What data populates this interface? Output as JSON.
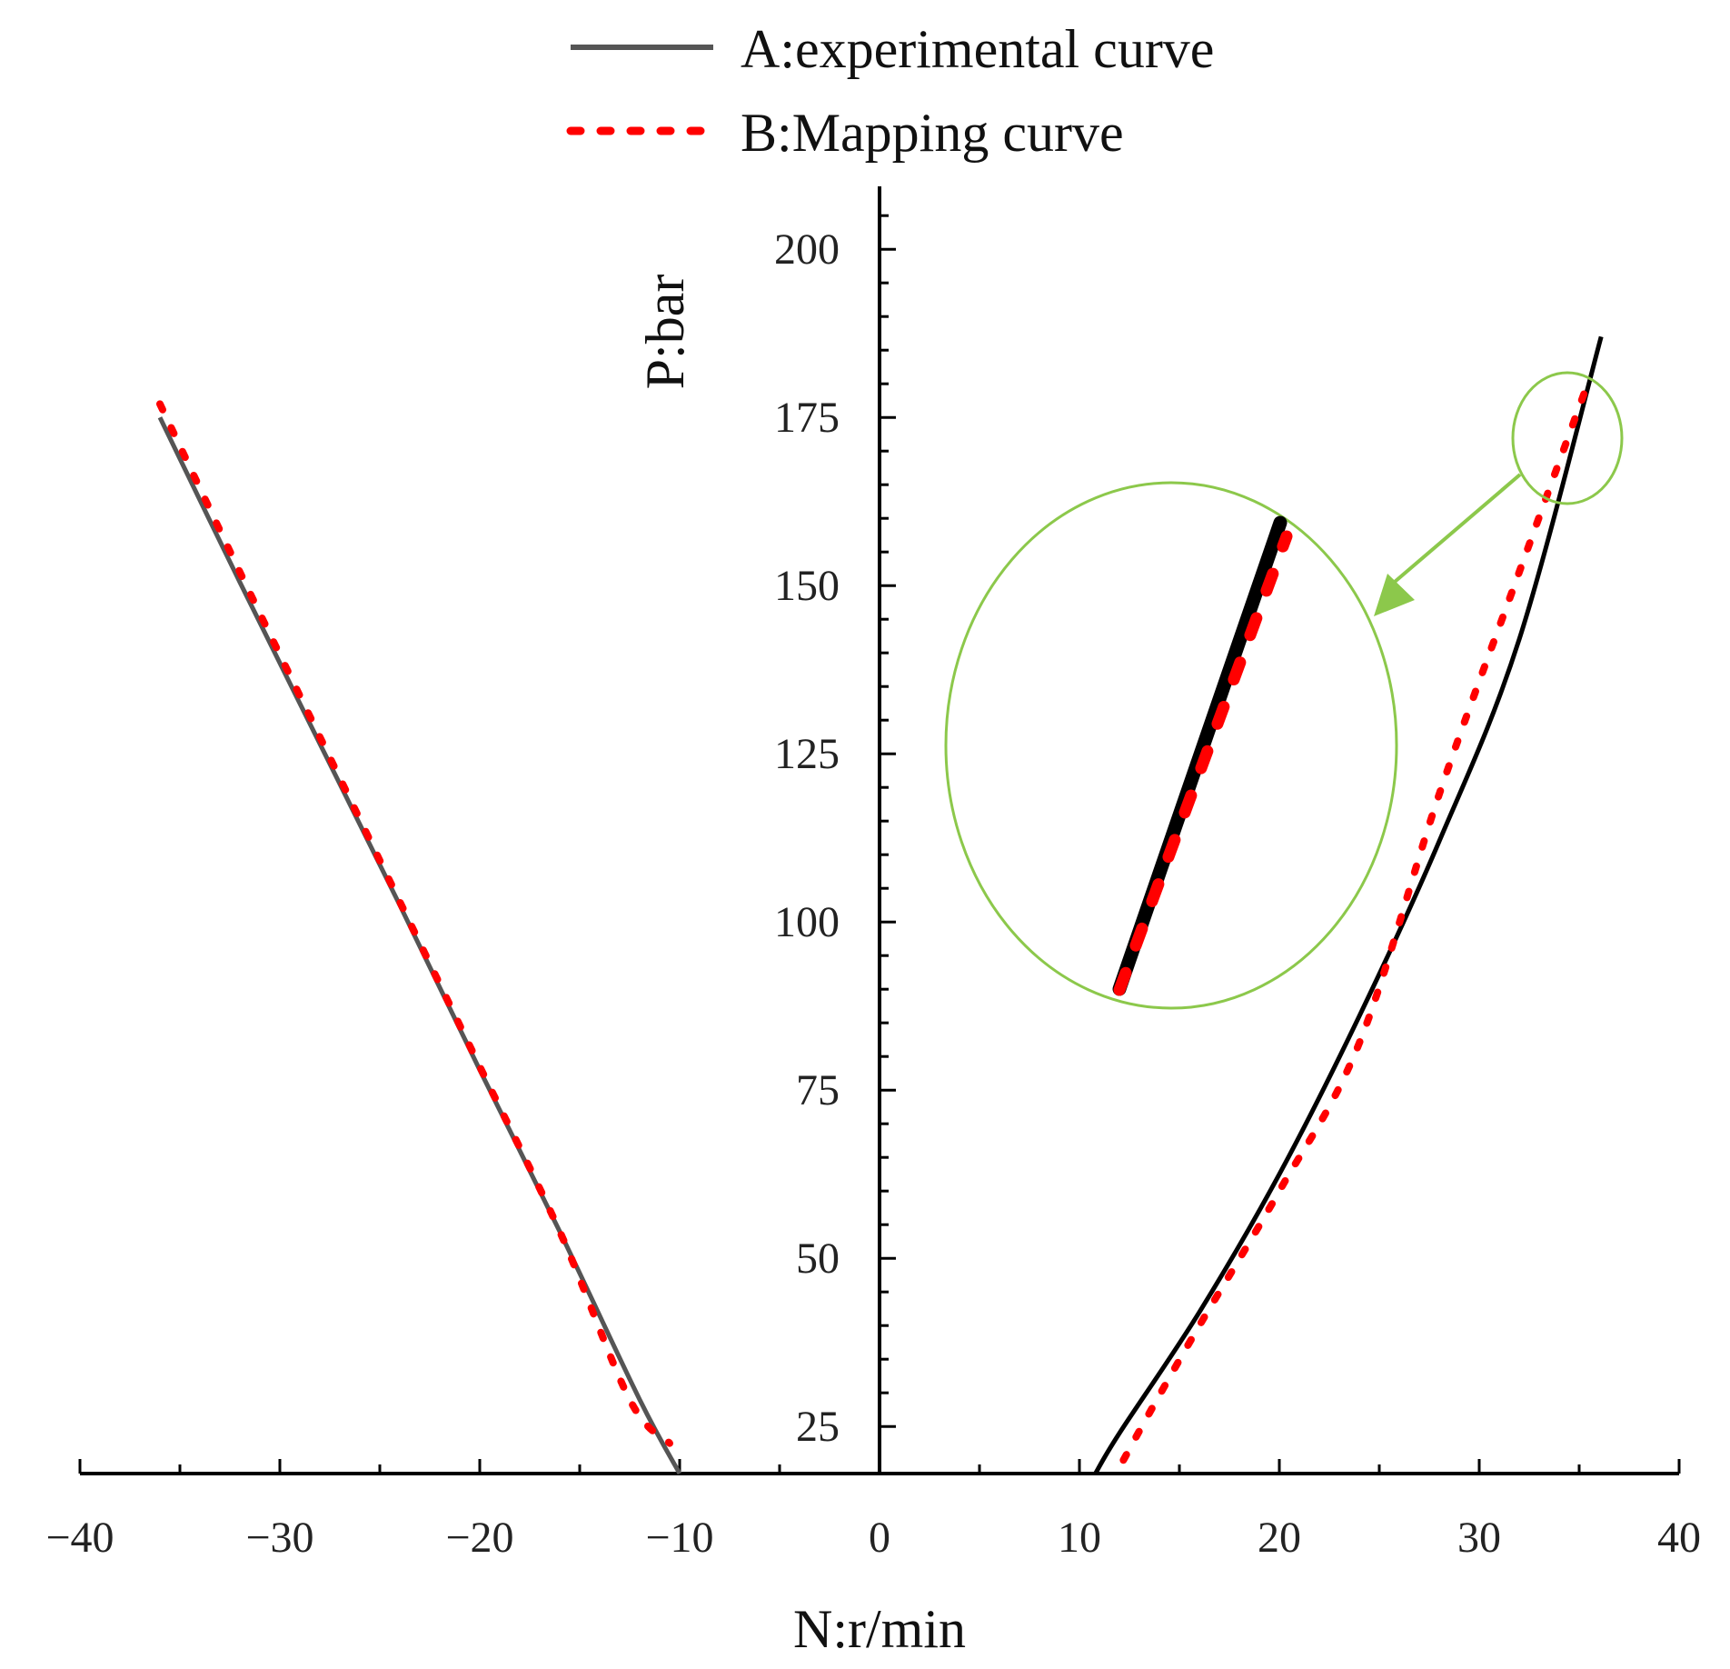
{
  "chart_data": {
    "type": "line",
    "title": "",
    "xlabel": "N:r/min",
    "ylabel": "P:bar",
    "xlim": [
      -40,
      40
    ],
    "ylim": [
      18,
      210
    ],
    "x_ticks": [
      -40,
      -30,
      -20,
      -10,
      0,
      10,
      20,
      30,
      40
    ],
    "x_tick_labels": [
      "−40",
      "−30",
      "−20",
      "−10",
      "0",
      "10",
      "20",
      "30",
      "40"
    ],
    "y_ticks": [
      25,
      50,
      75,
      100,
      125,
      150,
      175,
      200
    ],
    "y_tick_labels": [
      "25",
      "50",
      "75",
      "100",
      "125",
      "150",
      "175",
      "200"
    ],
    "grid": false,
    "legend_position": "top-center",
    "series": [
      {
        "name": "A:experimental curve",
        "style": "solid",
        "color": "#555555",
        "segments": [
          {
            "x": [
              -36,
              -32,
              -28,
              -24,
              -20,
              -16,
              -12,
              -10
            ],
            "y": [
              175,
              150.5,
              126.5,
              102.5,
              78,
              54,
              29,
              18
            ]
          },
          {
            "x": [
              10.8,
              12,
              16,
              20,
              24,
              28,
              32,
              36.1
            ],
            "y": [
              18,
              24,
              42,
              62.5,
              86,
              112,
              142,
              187
            ]
          }
        ]
      },
      {
        "name": "B:Mapping curve",
        "style": "dotted",
        "color": "#ff0000",
        "segments": [
          {
            "x": [
              -36,
              -32,
              -28,
              -24,
              -20,
              -16,
              -12.5,
              -10.5
            ],
            "y": [
              177,
              152,
              127.5,
              103,
              78.5,
              54,
              29,
              22.5
            ]
          },
          {
            "x": [
              12.2,
              13.5,
              16,
              20,
              24,
              28,
              32,
              35.3
            ],
            "y": [
              20,
              27,
              40,
              60,
              82,
              119,
              152,
              179
            ]
          }
        ]
      }
    ],
    "annotations": [
      {
        "type": "zoom-circle",
        "target_x": 34.5,
        "target_y": 172,
        "description": "magnified inset of curve end"
      }
    ]
  },
  "colors": {
    "experimental_left": "#555555",
    "experimental_right": "#000000",
    "mapping": "#ff0000",
    "annotation": "#8cc84b"
  }
}
